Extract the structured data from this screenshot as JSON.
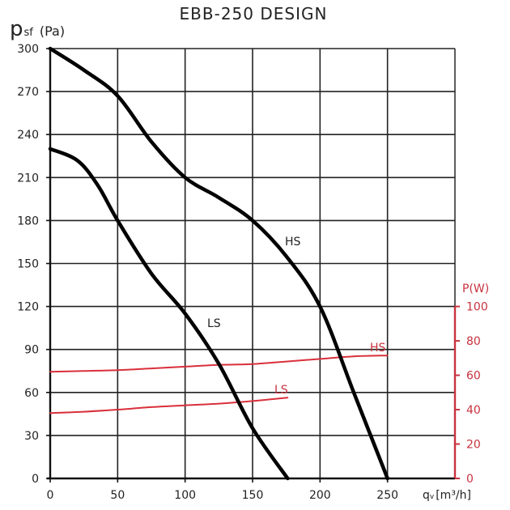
{
  "chart_data": {
    "type": "line",
    "title": "EBB-250 DESIGN",
    "ylabel_main": "p",
    "ylabel_sub": "sf",
    "ylabel_unit": "(Pa)",
    "xlabel_main": "q",
    "xlabel_sub": "v",
    "xlabel_unit": "[m³/h]",
    "y2label": "P(W)",
    "xlim": [
      0,
      300
    ],
    "ylim": [
      0,
      300
    ],
    "y2lim": [
      0,
      100
    ],
    "x_ticks": [
      "0",
      "50",
      "100",
      "150",
      "200",
      "250"
    ],
    "x_tick_values": [
      0,
      50,
      100,
      150,
      200,
      250
    ],
    "y_ticks": [
      "0",
      "30",
      "60",
      "90",
      "120",
      "150",
      "180",
      "210",
      "240",
      "270",
      "300"
    ],
    "y_tick_values": [
      0,
      30,
      60,
      90,
      120,
      150,
      180,
      210,
      240,
      270,
      300
    ],
    "y2_ticks": [
      "0",
      "20",
      "40",
      "60",
      "80",
      "100"
    ],
    "y2_tick_values": [
      0,
      20,
      40,
      60,
      80,
      100
    ],
    "grid": true,
    "pressure_series": [
      {
        "name": "HS",
        "label": "HS",
        "color": "#000000",
        "x": [
          0,
          25,
          50,
          75,
          100,
          125,
          150,
          175,
          200,
          225,
          250
        ],
        "y": [
          300,
          285,
          267,
          235,
          210,
          196,
          180,
          155,
          120,
          60,
          0
        ]
      },
      {
        "name": "LS",
        "label": "LS",
        "color": "#000000",
        "x": [
          0,
          20,
          35,
          50,
          75,
          100,
          125,
          150,
          176
        ],
        "y": [
          230,
          222,
          205,
          180,
          143,
          115,
          80,
          35,
          0
        ]
      }
    ],
    "power_series": [
      {
        "name": "HS",
        "label": "HS",
        "color": "#d9303b",
        "x": [
          0,
          25,
          50,
          75,
          100,
          125,
          150,
          175,
          200,
          225,
          250
        ],
        "y": [
          62,
          62.5,
          63,
          64,
          65,
          66,
          66.5,
          68,
          69.5,
          71,
          71.5
        ]
      },
      {
        "name": "LS",
        "label": "LS",
        "color": "#d9303b",
        "x": [
          0,
          25,
          50,
          75,
          100,
          125,
          150,
          176
        ],
        "y": [
          38,
          38.8,
          40,
          41.5,
          42.5,
          43.5,
          45,
          47
        ]
      }
    ]
  }
}
